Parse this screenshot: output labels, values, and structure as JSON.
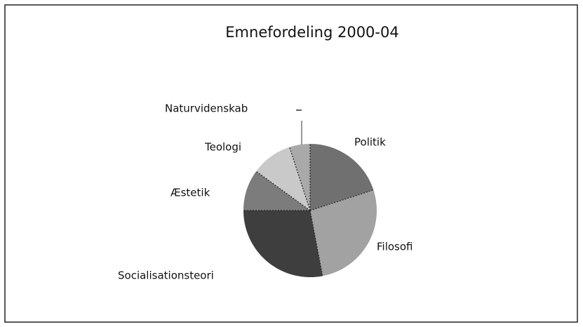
{
  "chart_data": {
    "type": "pie",
    "title": "Emnefordeling 2000-04",
    "categories": [
      "Politik",
      "Filosofi",
      "Socialisationsteori",
      "Æstetik",
      "Teologi",
      "Naturvidenskab"
    ],
    "values": [
      20,
      27,
      28,
      10,
      10,
      5
    ],
    "colors": [
      "#707070",
      "#a2a2a2",
      "#3e3e3e",
      "#7c7c7c",
      "#c9c9c9",
      "#a9a9a9"
    ]
  }
}
